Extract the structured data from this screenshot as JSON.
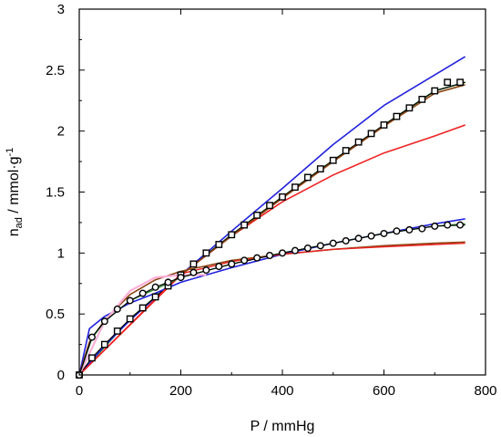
{
  "chart_data": {
    "type": "scatter",
    "title": "",
    "xlabel": "P / mmHg",
    "ylabel_main": "n",
    "ylabel_sub": "ad",
    "ylabel_rest": " / mmol·g",
    "ylabel_sup": "-1",
    "xlim": [
      0,
      800
    ],
    "ylim": [
      0,
      3
    ],
    "xticks": [
      0,
      200,
      400,
      600,
      800
    ],
    "yticks": [
      0,
      0.5,
      1,
      1.5,
      2,
      2.5,
      3
    ],
    "xtick_labels": [
      "0",
      "200",
      "400",
      "600",
      "800"
    ],
    "ytick_labels": [
      "0",
      "0.5",
      "1",
      "1.5",
      "2",
      "2.5",
      "3"
    ],
    "grid": false,
    "series": [
      {
        "marker": "square",
        "color": "#000000",
        "x": [
          0,
          25,
          50,
          75,
          100,
          125,
          150,
          175,
          200,
          225,
          250,
          275,
          300,
          325,
          350,
          375,
          400,
          425,
          450,
          475,
          500,
          525,
          550,
          575,
          600,
          625,
          650,
          675,
          700,
          725,
          750
        ],
        "y": [
          0.0,
          0.14,
          0.25,
          0.36,
          0.46,
          0.55,
          0.64,
          0.73,
          0.82,
          0.91,
          1.0,
          1.07,
          1.15,
          1.23,
          1.31,
          1.39,
          1.46,
          1.54,
          1.62,
          1.69,
          1.76,
          1.84,
          1.91,
          1.98,
          2.05,
          2.12,
          2.19,
          2.26,
          2.33,
          2.4,
          2.4
        ]
      },
      {
        "marker": "circle",
        "color": "#000000",
        "x": [
          0,
          25,
          50,
          75,
          100,
          125,
          150,
          175,
          200,
          225,
          250,
          275,
          300,
          325,
          350,
          375,
          400,
          425,
          450,
          475,
          500,
          525,
          550,
          575,
          600,
          625,
          650,
          675,
          700,
          725,
          750
        ],
        "y": [
          0.0,
          0.31,
          0.44,
          0.54,
          0.61,
          0.67,
          0.72,
          0.76,
          0.8,
          0.84,
          0.86,
          0.89,
          0.91,
          0.94,
          0.96,
          0.98,
          1.0,
          1.02,
          1.04,
          1.06,
          1.08,
          1.1,
          1.12,
          1.14,
          1.16,
          1.18,
          1.19,
          1.2,
          1.22,
          1.23,
          1.23
        ]
      }
    ],
    "fit_lines": [
      {
        "color": "#2a8a2a",
        "width": 1.6,
        "x": [
          0,
          100,
          200,
          300,
          400,
          500,
          600,
          700,
          760
        ],
        "y": [
          0.0,
          0.46,
          0.82,
          1.15,
          1.46,
          1.76,
          2.05,
          2.33,
          2.4
        ]
      },
      {
        "color": "#2222dd",
        "width": 1.6,
        "x": [
          0,
          50,
          100,
          200,
          300,
          400,
          500,
          600,
          760
        ],
        "y": [
          0.0,
          0.24,
          0.45,
          0.82,
          1.18,
          1.53,
          1.89,
          2.21,
          2.61
        ]
      },
      {
        "color": "#ee2222",
        "width": 1.6,
        "x": [
          0,
          200,
          300,
          400,
          500,
          600,
          700,
          760
        ],
        "y": [
          0.0,
          0.82,
          1.14,
          1.42,
          1.64,
          1.82,
          1.96,
          2.05
        ]
      },
      {
        "color": "#000000",
        "width": 1.2,
        "x": [
          0,
          25,
          50,
          100,
          150,
          200,
          300,
          400,
          500,
          600,
          700,
          760
        ],
        "y": [
          0.0,
          0.14,
          0.25,
          0.46,
          0.64,
          0.82,
          1.15,
          1.46,
          1.76,
          2.05,
          2.33,
          2.4
        ]
      },
      {
        "color": "#8b4513",
        "width": 1.6,
        "x": [
          200,
          300,
          400,
          500,
          600,
          700,
          760
        ],
        "y": [
          0.82,
          1.14,
          1.45,
          1.75,
          2.04,
          2.31,
          2.38
        ]
      },
      {
        "color": "#2222dd",
        "width": 1.6,
        "x": [
          0,
          20,
          50,
          100,
          150,
          200,
          300,
          400,
          500,
          600,
          700,
          760
        ],
        "y": [
          0.0,
          0.38,
          0.48,
          0.59,
          0.67,
          0.76,
          0.88,
          0.99,
          1.08,
          1.16,
          1.24,
          1.28
        ]
      },
      {
        "color": "#8b4513",
        "width": 1.6,
        "x": [
          0,
          20,
          50,
          100,
          150,
          200,
          300,
          400,
          500,
          600,
          700,
          760
        ],
        "y": [
          0.0,
          0.27,
          0.45,
          0.66,
          0.78,
          0.85,
          0.94,
          0.99,
          1.03,
          1.06,
          1.08,
          1.09
        ]
      },
      {
        "color": "#ee2222",
        "width": 1.4,
        "x": [
          0,
          200,
          300,
          400,
          500,
          600,
          700,
          760
        ],
        "y": [
          0.0,
          0.83,
          0.93,
          0.99,
          1.03,
          1.05,
          1.07,
          1.08
        ]
      },
      {
        "color": "#ffb0d8",
        "width": 2.2,
        "x": [
          0,
          50,
          100,
          150,
          200,
          250
        ],
        "y": [
          0.0,
          0.44,
          0.69,
          0.8,
          0.82,
          0.82
        ]
      },
      {
        "color": "#2a8a2a",
        "width": 1.3,
        "x": [
          0,
          25,
          50,
          100,
          200,
          300,
          400,
          500,
          600,
          700,
          760
        ],
        "y": [
          0.0,
          0.3,
          0.44,
          0.61,
          0.8,
          0.91,
          1.0,
          1.08,
          1.16,
          1.22,
          1.24
        ]
      },
      {
        "color": "#000000",
        "width": 1.2,
        "x": [
          0,
          25,
          50,
          100,
          150,
          200,
          300,
          400,
          500,
          600,
          700,
          760
        ],
        "y": [
          0.0,
          0.31,
          0.44,
          0.61,
          0.72,
          0.8,
          0.91,
          1.0,
          1.08,
          1.16,
          1.22,
          1.23
        ]
      }
    ]
  }
}
